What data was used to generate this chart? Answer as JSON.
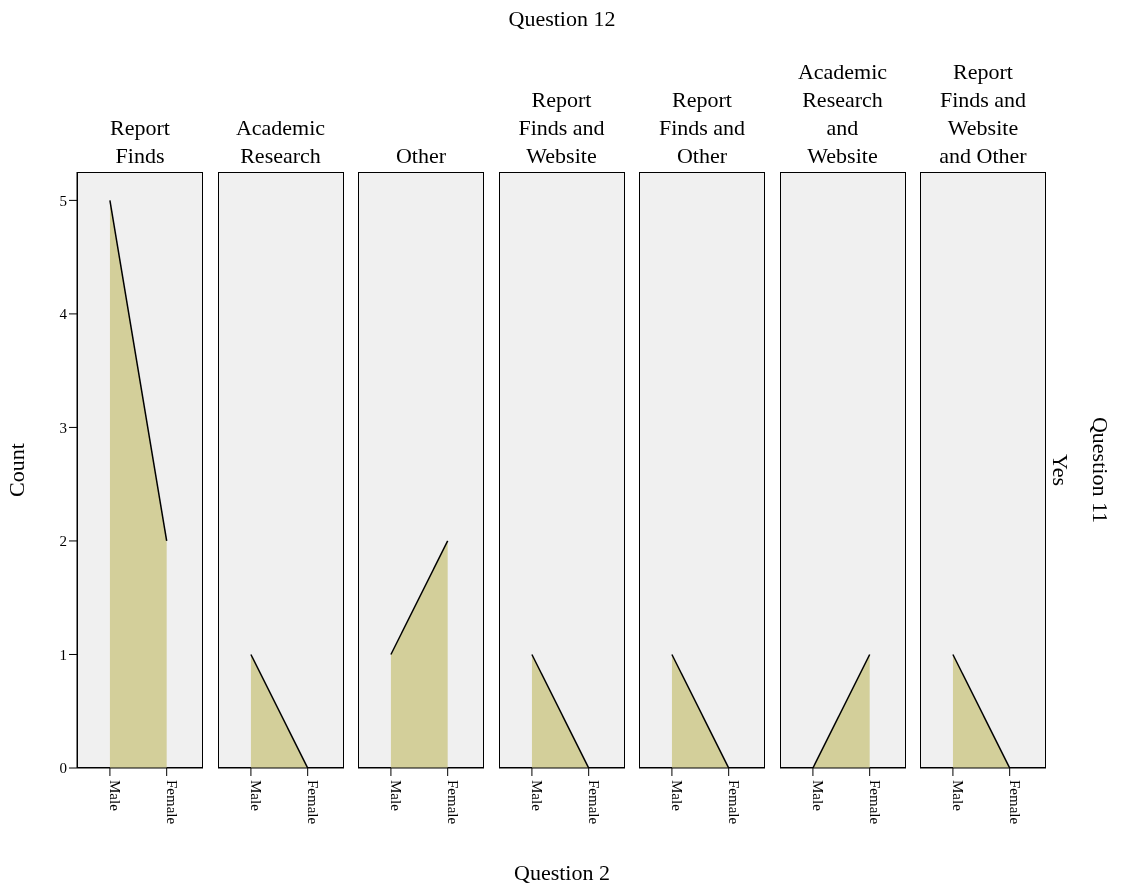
{
  "chart_data": [
    {
      "type": "area",
      "title": "Report Finds",
      "ylabel": "Count",
      "categories": [
        "Male",
        "Female"
      ],
      "values": [
        5,
        2
      ],
      "color": "#d3cf9a",
      "ylim": [
        0,
        5.25
      ],
      "yticks": [
        0,
        1,
        2,
        3,
        4,
        5
      ],
      "annotations": [
        "Question 12",
        "Question 2",
        "Question 11",
        "Yes"
      ]
    },
    {
      "type": "area",
      "title": "Academic Research",
      "categories": [
        "Male",
        "Female"
      ],
      "values": [
        1,
        0
      ],
      "color": "#d3cf9a",
      "ylim": [
        0,
        5.25
      ],
      "yticks": [
        0,
        1,
        2,
        3,
        4,
        5
      ],
      "tick_labels": "x"
    },
    {
      "type": "area",
      "title": "Other",
      "categories": [
        "Male",
        "Female"
      ],
      "values": [
        1,
        2
      ],
      "color": "#d3cf9a",
      "ylim": [
        0,
        5.25
      ],
      "yticks": [
        0,
        1,
        2,
        3,
        4,
        5
      ],
      "tick_labels": "x"
    },
    {
      "type": "area",
      "title": "Report Finds and Website",
      "categories": [
        "Male",
        "Female"
      ],
      "values": [
        1,
        0
      ],
      "color": "#d3cf9a",
      "ylim": [
        0,
        5.25
      ],
      "yticks": [
        0,
        1,
        2,
        3,
        4,
        5
      ],
      "tick_labels": "x"
    },
    {
      "type": "area",
      "title": "Report Finds and Other",
      "categories": [
        "Male",
        "Female"
      ],
      "values": [
        1,
        0
      ],
      "color": "#d3cf9a",
      "ylim": [
        0,
        5.25
      ],
      "yticks": [
        0,
        1,
        2,
        3,
        4,
        5
      ],
      "tick_labels": "x"
    },
    {
      "type": "area",
      "title": "Academic Research and Website",
      "categories": [
        "Male",
        "Female"
      ],
      "values": [
        0,
        1
      ],
      "color": "#d3cf9a",
      "ylim": [
        0,
        5.25
      ],
      "yticks": [
        0,
        1,
        2,
        3,
        4,
        5
      ],
      "tick_labels": "x"
    },
    {
      "type": "area",
      "title": "Report Finds and Website and Other",
      "categories": [
        "Male",
        "Female"
      ],
      "values": [
        1,
        0
      ],
      "color": "#d3cf9a",
      "ylim": [
        0,
        5.25
      ],
      "yticks": [
        0,
        1,
        2,
        3,
        4,
        5
      ],
      "tick_labels": "x"
    }
  ]
}
